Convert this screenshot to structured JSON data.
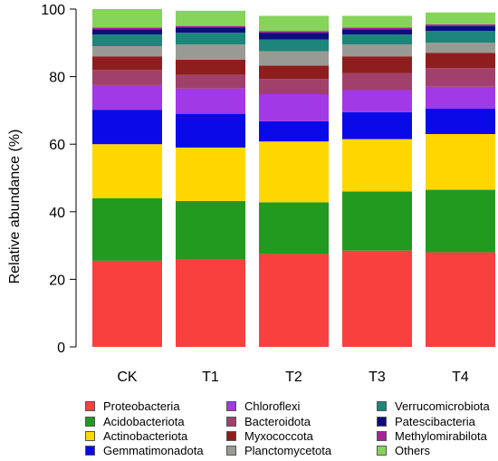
{
  "chart_data": {
    "type": "bar",
    "stacked": true,
    "ylabel": "Relative abundance (%)",
    "xlabel": "",
    "ylim": [
      0,
      100
    ],
    "yticks": [
      0,
      20,
      40,
      60,
      80,
      100
    ],
    "categories": [
      "CK",
      "T1",
      "T2",
      "T3",
      "T4"
    ],
    "legend_position": "bottom",
    "series": [
      {
        "name": "Proteobacteria",
        "color": "#F8403F",
        "values": [
          25.5,
          26.0,
          27.5,
          28.5,
          28.0
        ]
      },
      {
        "name": "Acidobacteriota",
        "color": "#229A1F",
        "values": [
          18.5,
          17.2,
          15.3,
          17.5,
          18.5
        ]
      },
      {
        "name": "Actinobacteriota",
        "color": "#FFD700",
        "values": [
          16.0,
          15.8,
          18.0,
          15.5,
          16.5
        ]
      },
      {
        "name": "Gemmatimonadota",
        "color": "#0A0AE8",
        "values": [
          10.2,
          10.0,
          6.0,
          8.0,
          7.5
        ]
      },
      {
        "name": "Chloroflexi",
        "color": "#A139E6",
        "values": [
          7.3,
          7.5,
          8.0,
          6.5,
          6.5
        ]
      },
      {
        "name": "Bacteroidota",
        "color": "#A1406A",
        "values": [
          4.5,
          4.0,
          4.5,
          5.0,
          5.5
        ]
      },
      {
        "name": "Myxococcota",
        "color": "#8E1E1E",
        "values": [
          4.0,
          4.5,
          4.0,
          5.0,
          4.5
        ]
      },
      {
        "name": "Planctomycetota",
        "color": "#9A9A94",
        "values": [
          3.0,
          4.5,
          4.2,
          3.5,
          3.0
        ]
      },
      {
        "name": "Verrucomicrobiota",
        "color": "#1E857B",
        "values": [
          3.5,
          3.5,
          3.5,
          3.0,
          3.5
        ]
      },
      {
        "name": "Patescibacteria",
        "color": "#0D0D80",
        "values": [
          1.5,
          1.5,
          2.0,
          1.5,
          1.5
        ]
      },
      {
        "name": "Methylomirabilota",
        "color": "#A8249A",
        "values": [
          0.5,
          0.5,
          0.5,
          0.5,
          0.5
        ]
      },
      {
        "name": "Others",
        "color": "#86D45A",
        "values": [
          5.5,
          4.5,
          4.5,
          3.5,
          3.5
        ]
      }
    ]
  }
}
